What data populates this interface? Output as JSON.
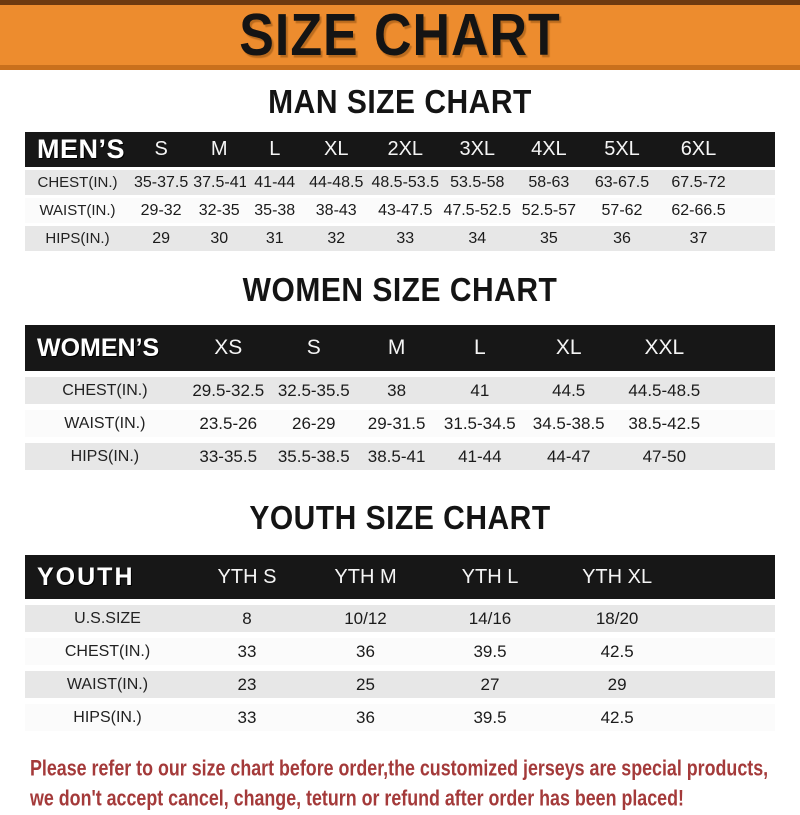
{
  "header": {
    "title": "SIZE CHART"
  },
  "colors": {
    "banner_bg": "#ed8c2e",
    "table_header_bg": "#171717",
    "row_alt_bg": "#e7e7e7",
    "warning_text": "#a43a3a"
  },
  "sections": [
    {
      "heading": "MAN SIZE CHART",
      "table": {
        "label": "MEN’S",
        "columns": [
          "S",
          "M",
          "L",
          "XL",
          "2XL",
          "3XL",
          "4XL",
          "5XL",
          "6XL"
        ],
        "rows": [
          {
            "label": "CHEST(IN.)",
            "values": [
              "35-37.5",
              "37.5-41",
              "41-44",
              "44-48.5",
              "48.5-53.5",
              "53.5-58",
              "58-63",
              "63-67.5",
              "67.5-72"
            ]
          },
          {
            "label": "WAIST(IN.)",
            "values": [
              "29-32",
              "32-35",
              "35-38",
              "38-43",
              "43-47.5",
              "47.5-52.5",
              "52.5-57",
              "57-62",
              "62-66.5"
            ]
          },
          {
            "label": "HIPS(IN.)",
            "values": [
              "29",
              "30",
              "31",
              "32",
              "33",
              "34",
              "35",
              "36",
              "37"
            ]
          }
        ]
      }
    },
    {
      "heading": "WOMEN SIZE CHART",
      "table": {
        "label": "WOMEN’S",
        "columns": [
          "XS",
          "S",
          "M",
          "L",
          "XL",
          "XXL"
        ],
        "rows": [
          {
            "label": "CHEST(IN.)",
            "values": [
              "29.5-32.5",
              "32.5-35.5",
              "38",
              "41",
              "44.5",
              "44.5-48.5"
            ]
          },
          {
            "label": "WAIST(IN.)",
            "values": [
              "23.5-26",
              "26-29",
              "29-31.5",
              "31.5-34.5",
              "34.5-38.5",
              "38.5-42.5"
            ]
          },
          {
            "label": "HIPS(IN.)",
            "values": [
              "33-35.5",
              "35.5-38.5",
              "38.5-41",
              "41-44",
              "44-47",
              "47-50"
            ]
          }
        ]
      }
    },
    {
      "heading": "YOUTH SIZE CHART",
      "table": {
        "label": "YOUTH",
        "columns": [
          "YTH S",
          "YTH M",
          "YTH L",
          "YTH XL"
        ],
        "rows": [
          {
            "label": "U.S.SIZE",
            "values": [
              "8",
              "10/12",
              "14/16",
              "18/20"
            ]
          },
          {
            "label": "CHEST(IN.)",
            "values": [
              "33",
              "36",
              "39.5",
              "42.5"
            ]
          },
          {
            "label": "WAIST(IN.)",
            "values": [
              "23",
              "25",
              "27",
              "29"
            ]
          },
          {
            "label": "HIPS(IN.)",
            "values": [
              "33",
              "36",
              "39.5",
              "42.5"
            ]
          }
        ]
      }
    }
  ],
  "footer": {
    "line1": "Please refer to our size chart before order,the customized jerseys are special products,",
    "line2": "we don't accept cancel, change, teturn or refund after order has been placed!"
  }
}
